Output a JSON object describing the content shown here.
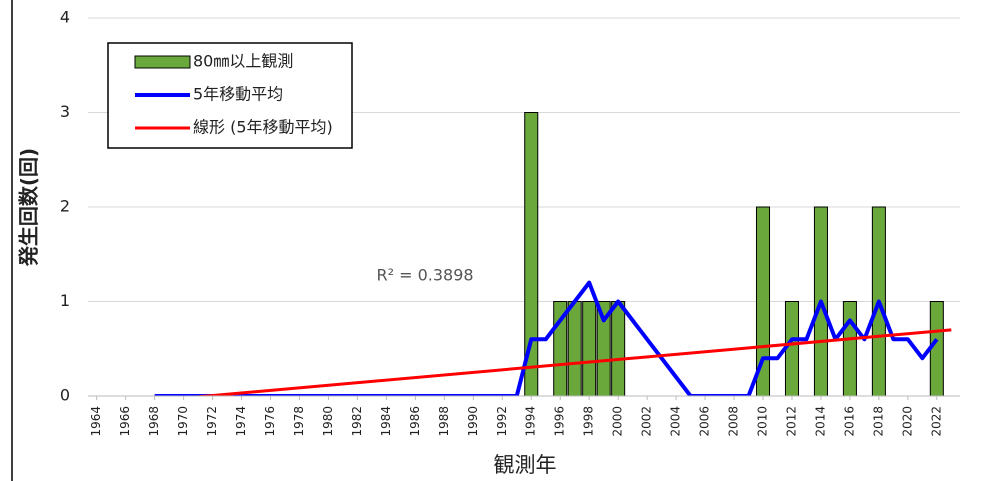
{
  "chart_data": {
    "type": "bar",
    "x": [
      1964,
      1965,
      1966,
      1967,
      1968,
      1969,
      1970,
      1971,
      1972,
      1973,
      1974,
      1975,
      1976,
      1977,
      1978,
      1979,
      1980,
      1981,
      1982,
      1983,
      1984,
      1985,
      1986,
      1987,
      1988,
      1989,
      1990,
      1991,
      1992,
      1993,
      1994,
      1995,
      1996,
      1997,
      1998,
      1999,
      2000,
      2001,
      2002,
      2003,
      2004,
      2005,
      2006,
      2007,
      2008,
      2009,
      2010,
      2011,
      2012,
      2013,
      2014,
      2015,
      2016,
      2017,
      2018,
      2019,
      2020,
      2021,
      2022
    ],
    "series": [
      {
        "name": "80㎜以上観測",
        "type": "bar",
        "color": "#6aa83c",
        "values": [
          0,
          0,
          0,
          0,
          0,
          0,
          0,
          0,
          0,
          0,
          0,
          0,
          0,
          0,
          0,
          0,
          0,
          0,
          0,
          0,
          0,
          0,
          0,
          0,
          0,
          0,
          0,
          0,
          0,
          0,
          3,
          0,
          1,
          1,
          1,
          1,
          1,
          0,
          0,
          0,
          0,
          0,
          0,
          0,
          0,
          0,
          2,
          0,
          1,
          0,
          2,
          0,
          1,
          0,
          2,
          0,
          0,
          0,
          1
        ]
      },
      {
        "name": "5年移動平均",
        "type": "line",
        "color": "#0000ff",
        "values": [
          null,
          null,
          null,
          null,
          0,
          0,
          0,
          0,
          0,
          0,
          0,
          0,
          0,
          0,
          0,
          0,
          0,
          0,
          0,
          0,
          0,
          0,
          0,
          0,
          0,
          0,
          0,
          0,
          0,
          0,
          0.6,
          0.6,
          0.8,
          1.0,
          1.2,
          0.8,
          1.0,
          0.8,
          0.6,
          0.4,
          0.2,
          0,
          0,
          0,
          0,
          0,
          0.4,
          0.4,
          0.6,
          0.6,
          1.0,
          0.6,
          0.8,
          0.6,
          1.0,
          0.6,
          0.6,
          0.4,
          0.6
        ]
      },
      {
        "name": "線形 (5年移動平均)",
        "type": "line",
        "color": "#ff0000",
        "x": [
          1968,
          2023
        ],
        "values": [
          -0.05,
          0.7
        ]
      }
    ],
    "annotation": "R² = 0.3898",
    "x_label": "観測年",
    "y_label": "発生回数(回)",
    "xlim": [
      1963.4,
      2023.6
    ],
    "xticks": [
      1964,
      1966,
      1968,
      1970,
      1972,
      1974,
      1976,
      1978,
      1980,
      1982,
      1984,
      1986,
      1988,
      1990,
      1992,
      1994,
      1996,
      1998,
      2000,
      2002,
      2004,
      2006,
      2008,
      2010,
      2012,
      2014,
      2016,
      2018,
      2020,
      2022
    ],
    "ylim": [
      0,
      4
    ],
    "yticks": [
      0,
      1,
      2,
      3,
      4
    ],
    "grid": true,
    "legend": "upper left"
  }
}
